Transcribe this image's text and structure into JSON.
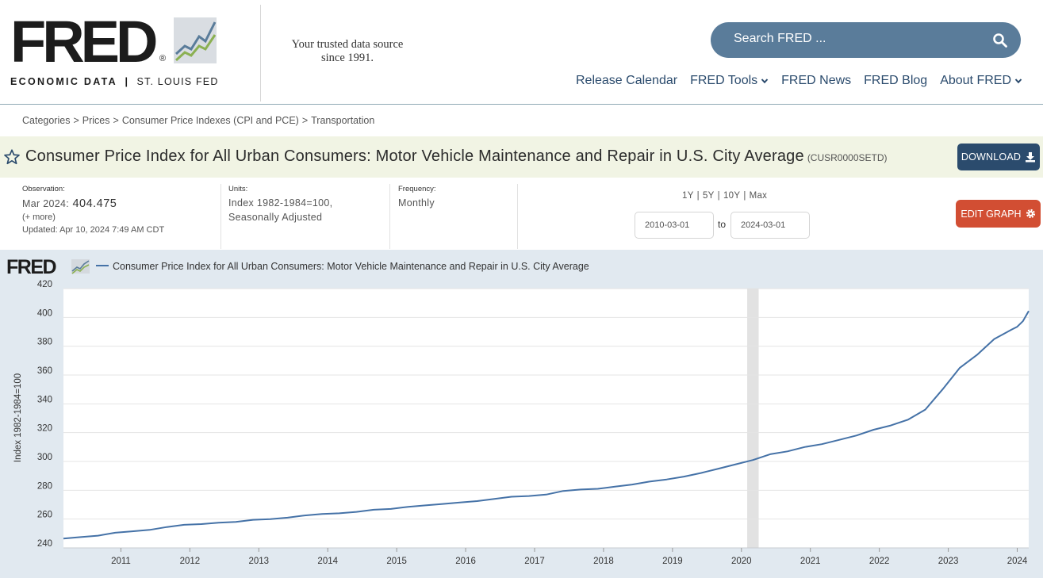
{
  "header": {
    "logo_text": "FRED",
    "logo_reg": "®",
    "logo_sub_left": "ECONOMIC DATA",
    "logo_sub_sep": "|",
    "logo_sub_right": "ST. LOUIS FED",
    "tagline_line1": "Your trusted data source",
    "tagline_line2": "since 1991.",
    "search_placeholder": "Search FRED ...",
    "nav": [
      {
        "label": "Release Calendar",
        "icon": ""
      },
      {
        "label": "FRED Tools",
        "icon": "chevron-down-icon"
      },
      {
        "label": "FRED News",
        "icon": ""
      },
      {
        "label": "FRED Blog",
        "icon": ""
      },
      {
        "label": "About FRED",
        "icon": "chevron-down-icon"
      }
    ]
  },
  "breadcrumb": {
    "items": [
      "Categories",
      "Prices",
      "Consumer Price Indexes (CPI and PCE)",
      "Transportation"
    ],
    "separator": ">"
  },
  "series": {
    "title": "Consumer Price Index for All Urban Consumers: Motor Vehicle Maintenance and Repair in U.S. City Average",
    "id": "(CUSR0000SETD)",
    "download_label": "DOWNLOAD"
  },
  "meta": {
    "observation_label": "Observation:",
    "observation_date": "Mar 2024:",
    "observation_value": "404.475",
    "more_link": "(+ more)",
    "updated": "Updated: Apr 10, 2024 7:49 AM CDT",
    "units_label": "Units:",
    "units_line1": "Index 1982-1984=100,",
    "units_line2": "Seasonally Adjusted",
    "frequency_label": "Frequency:",
    "frequency_value": "Monthly"
  },
  "controls": {
    "range_links": [
      "1Y",
      "5Y",
      "10Y",
      "Max"
    ],
    "range_sep": "|",
    "start_date": "2010-03-01",
    "to_label": "to",
    "end_date": "2024-03-01",
    "edit_label": "EDIT GRAPH"
  },
  "colors": {
    "nav": "#2b4b6d",
    "search_bg": "#5a7c9a",
    "download_bg": "#2b4b6d",
    "edit_bg": "#d24e33",
    "title_band": "#f1f4e4",
    "chart_bg": "#e1e9f0",
    "series_line": "#4572a7",
    "recession": "#e2e2e2"
  },
  "chart_data": {
    "type": "line",
    "title": "",
    "logo_text": "FRED",
    "legend_label": "Consumer Price Index for All Urban Consumers: Motor Vehicle Maintenance and Repair in U.S. City Average",
    "ylabel": "Index 1982-1984=100",
    "xlabel": "",
    "ylim": [
      240,
      420
    ],
    "yticks": [
      240,
      260,
      280,
      300,
      320,
      340,
      360,
      380,
      400,
      420
    ],
    "xlim": [
      "2010-03",
      "2024-03"
    ],
    "xticks": [
      "2011",
      "2012",
      "2013",
      "2014",
      "2015",
      "2016",
      "2017",
      "2018",
      "2019",
      "2020",
      "2021",
      "2022",
      "2023",
      "2024"
    ],
    "grid": true,
    "recession_shading": [
      {
        "start": "2020-02",
        "end": "2020-04"
      }
    ],
    "series": [
      {
        "name": "Consumer Price Index for All Urban Consumers: Motor Vehicle Maintenance and Repair in U.S. City Average",
        "x": [
          "2010-03",
          "2010-06",
          "2010-09",
          "2010-12",
          "2011-03",
          "2011-06",
          "2011-09",
          "2011-12",
          "2012-03",
          "2012-06",
          "2012-09",
          "2012-12",
          "2013-03",
          "2013-06",
          "2013-09",
          "2013-12",
          "2014-03",
          "2014-06",
          "2014-09",
          "2014-12",
          "2015-03",
          "2015-06",
          "2015-09",
          "2015-12",
          "2016-03",
          "2016-06",
          "2016-09",
          "2016-12",
          "2017-03",
          "2017-06",
          "2017-09",
          "2017-12",
          "2018-03",
          "2018-06",
          "2018-09",
          "2018-12",
          "2019-03",
          "2019-06",
          "2019-09",
          "2019-12",
          "2020-03",
          "2020-06",
          "2020-09",
          "2020-12",
          "2021-03",
          "2021-06",
          "2021-09",
          "2021-12",
          "2022-03",
          "2022-06",
          "2022-09",
          "2022-12",
          "2023-03",
          "2023-06",
          "2023-09",
          "2023-12",
          "2024-01",
          "2024-02",
          "2024-03"
        ],
        "values": [
          246.5,
          247.5,
          248.5,
          250.5,
          251.5,
          252.5,
          254.5,
          256.0,
          256.5,
          257.5,
          258.0,
          259.5,
          260.0,
          261.0,
          262.5,
          263.5,
          264.0,
          265.0,
          266.5,
          267.0,
          268.5,
          269.5,
          270.5,
          271.5,
          272.5,
          274.0,
          275.5,
          276.0,
          277.0,
          279.5,
          280.5,
          281.0,
          282.5,
          284.0,
          286.0,
          287.5,
          289.5,
          292.0,
          295.0,
          298.0,
          301.0,
          305.0,
          307.0,
          310.0,
          312.0,
          315.0,
          318.0,
          322.0,
          325.0,
          329.0,
          336.0,
          350.0,
          365.0,
          374.0,
          385.0,
          391.5,
          393.5,
          397.5,
          404.475
        ]
      }
    ]
  }
}
